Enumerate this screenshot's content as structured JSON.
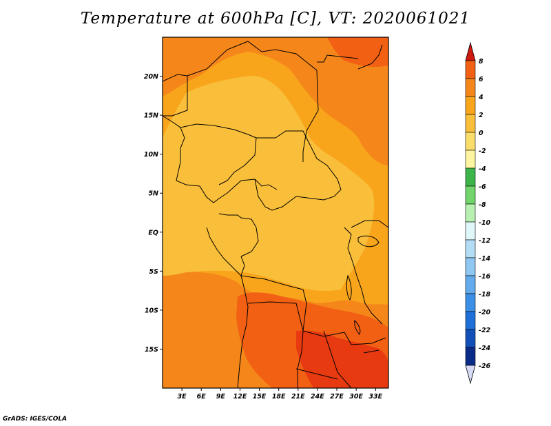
{
  "title": "Temperature at 600hPa [C], VT: 2020061021",
  "credit": "GrADS: IGES/COLA",
  "map": {
    "lon_range": [
      0,
      35
    ],
    "lat_range": [
      -20,
      25
    ],
    "lat_ticks": [
      {
        "value": 20,
        "label": "20N"
      },
      {
        "value": 15,
        "label": "15N"
      },
      {
        "value": 10,
        "label": "10N"
      },
      {
        "value": 5,
        "label": "5N"
      },
      {
        "value": 0,
        "label": "EQ"
      },
      {
        "value": -5,
        "label": "5S"
      },
      {
        "value": -10,
        "label": "10S"
      },
      {
        "value": -15,
        "label": "15S"
      }
    ],
    "lon_ticks": [
      {
        "value": 3,
        "label": "3E"
      },
      {
        "value": 6,
        "label": "6E"
      },
      {
        "value": 9,
        "label": "9E"
      },
      {
        "value": 12,
        "label": "12E"
      },
      {
        "value": 15,
        "label": "15E"
      },
      {
        "value": 18,
        "label": "18E"
      },
      {
        "value": 21,
        "label": "21E"
      },
      {
        "value": 24,
        "label": "24E"
      },
      {
        "value": 27,
        "label": "27E"
      },
      {
        "value": 30,
        "label": "30E"
      },
      {
        "value": 33,
        "label": "33E"
      }
    ]
  },
  "colorbar": {
    "labels": [
      "8",
      "6",
      "4",
      "2",
      "0",
      "-2",
      "-4",
      "-6",
      "-8",
      "-10",
      "-12",
      "-14",
      "-16",
      "-18",
      "-20",
      "-22",
      "-24",
      "-26"
    ],
    "colors": [
      "#e83a10",
      "#f26014",
      "#f5861a",
      "#f8a51c",
      "#f9bf3a",
      "#fadd6a",
      "#fdf5a0",
      "#3cb44a",
      "#71d56b",
      "#b7f0b0",
      "#e0f7fa",
      "#b3dcf5",
      "#8ec7f2",
      "#63abec",
      "#3c8fe6",
      "#1f6fd8",
      "#1250b8",
      "#0a2c88",
      "#06146a"
    ],
    "top_arrow_color": "#cf1a10",
    "bottom_arrow_color": "#d7daf5"
  }
}
